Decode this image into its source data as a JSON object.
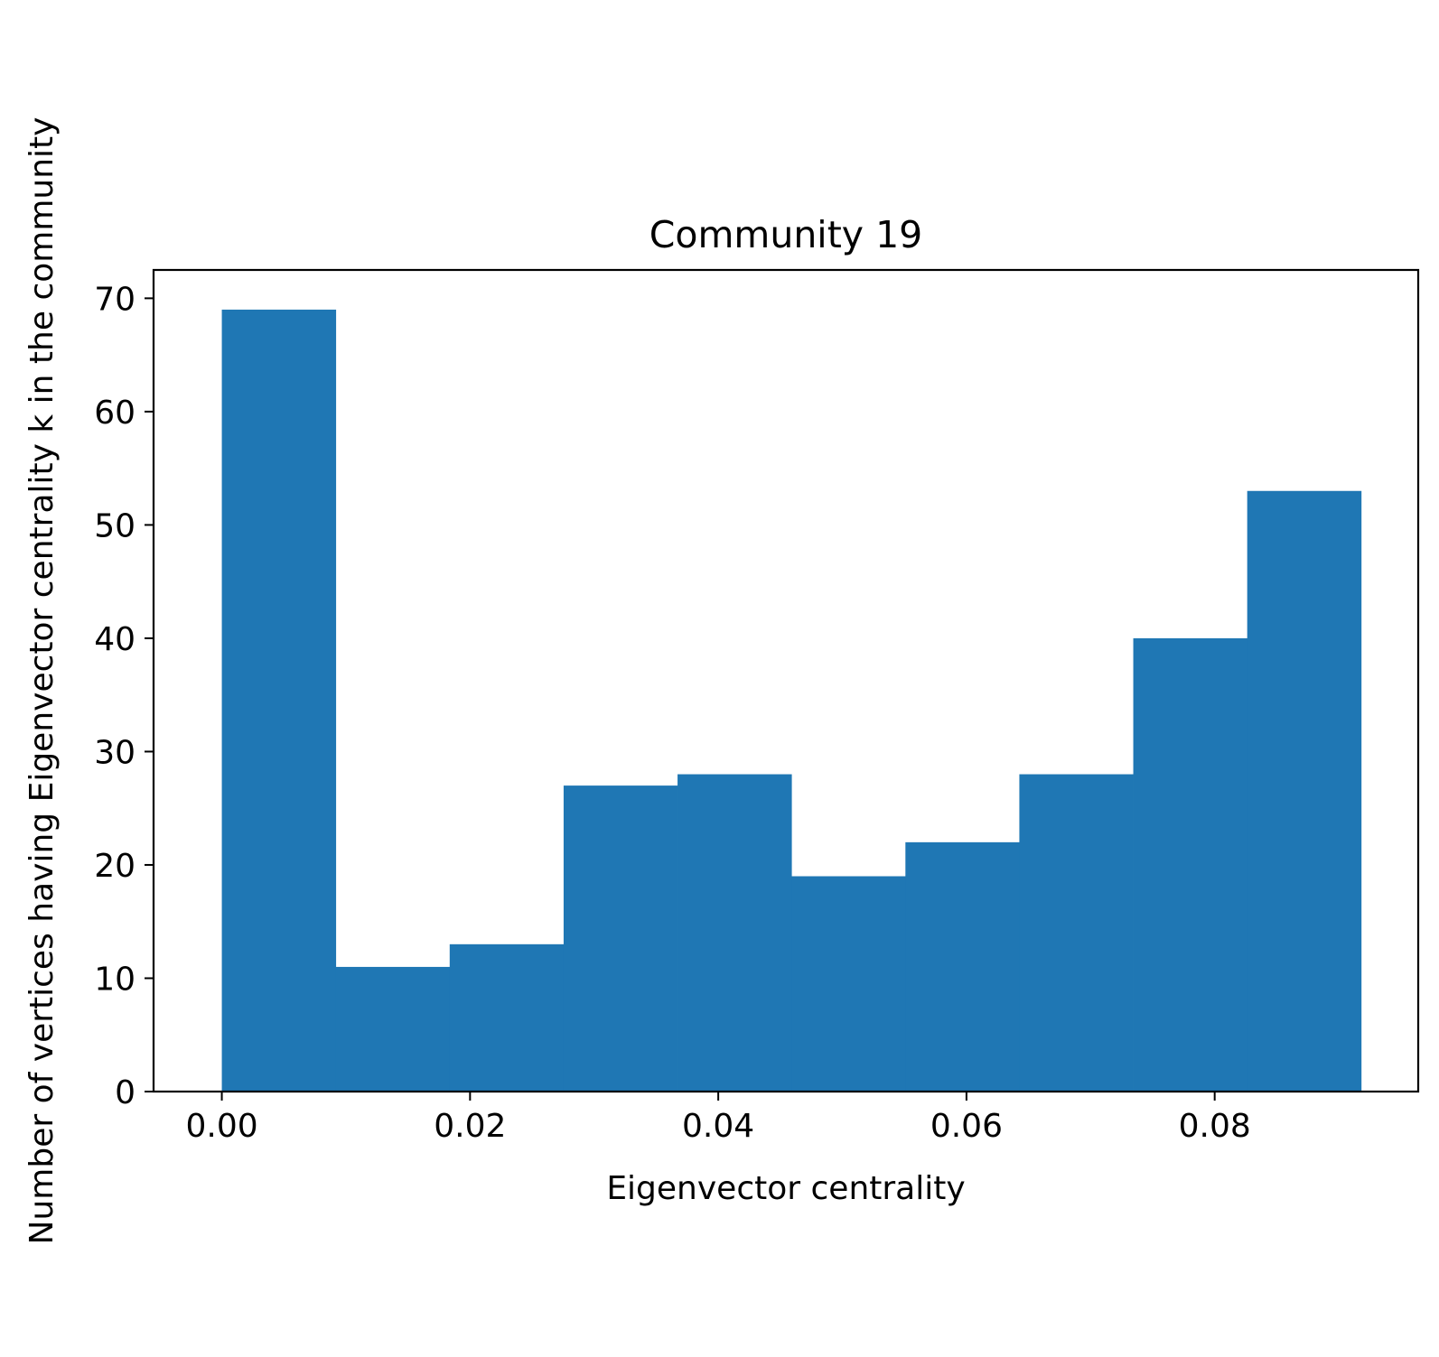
{
  "chart_data": {
    "type": "bar",
    "title": "Community 19",
    "xlabel": "Eigenvector centrality",
    "ylabel": "Number of vertices having Eigenvector centrality k in the community",
    "bin_edges": [
      0.0,
      0.00918,
      0.01836,
      0.02754,
      0.03672,
      0.0459,
      0.05508,
      0.06426,
      0.07344,
      0.08262,
      0.0918
    ],
    "values": [
      69,
      11,
      13,
      27,
      28,
      19,
      22,
      28,
      40,
      53
    ],
    "xlim": [
      -0.0055,
      0.0964
    ],
    "ylim": [
      0,
      72.5
    ],
    "xticks": [
      0.0,
      0.02,
      0.04,
      0.06,
      0.08
    ],
    "xtick_labels": [
      "0.00",
      "0.02",
      "0.04",
      "0.06",
      "0.08"
    ],
    "yticks": [
      0,
      10,
      20,
      30,
      40,
      50,
      60,
      70
    ],
    "ytick_labels": [
      "0",
      "10",
      "20",
      "30",
      "40",
      "50",
      "60",
      "70"
    ],
    "bar_color": "#1f77b4",
    "grid": false,
    "legend": "none"
  }
}
